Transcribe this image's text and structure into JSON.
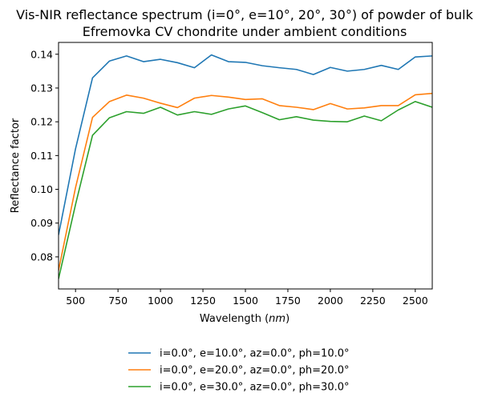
{
  "chart_data": {
    "type": "line",
    "title_lines": [
      "Vis-NIR reflectance spectrum (i=0°, e=10°, 20°, 30°) of powder of bulk",
      "Efremovka CV chondrite under ambient conditions"
    ],
    "xlabel_prefix": "Wavelength (",
    "xlabel_unit": "nm",
    "xlabel_suffix": ")",
    "ylabel": "Reflectance factor",
    "xlim": [
      400,
      2600
    ],
    "ylim": [
      0.0705,
      0.1435
    ],
    "xticks": [
      500,
      750,
      1000,
      1250,
      1500,
      1750,
      2000,
      2250,
      2500
    ],
    "yticks": [
      0.08,
      0.09,
      0.1,
      0.11,
      0.12,
      0.13,
      0.14
    ],
    "ytick_labels": [
      "0.08",
      "0.09",
      "0.10",
      "0.11",
      "0.12",
      "0.13",
      "0.14"
    ],
    "grid": false,
    "legend_position": "below-plot",
    "x": [
      400,
      500,
      600,
      700,
      800,
      900,
      1000,
      1100,
      1200,
      1300,
      1400,
      1500,
      1600,
      1700,
      1800,
      1900,
      2000,
      2100,
      2200,
      2300,
      2400,
      2500,
      2600
    ],
    "series": [
      {
        "name": "i=0.0°, e=10.0°, az=0.0°, ph=10.0°",
        "color": "#1f77b4",
        "values": [
          0.0865,
          0.112,
          0.133,
          0.138,
          0.1395,
          0.1378,
          0.1385,
          0.1375,
          0.136,
          0.1398,
          0.1378,
          0.1376,
          0.1366,
          0.136,
          0.1355,
          0.134,
          0.1361,
          0.135,
          0.1355,
          0.1367,
          0.1355,
          0.1392,
          0.1395
        ]
      },
      {
        "name": "i=0.0°, e=20.0°, az=0.0°, ph=20.0°",
        "color": "#ff7f0e",
        "values": [
          0.076,
          0.1005,
          0.1213,
          0.126,
          0.1279,
          0.127,
          0.1255,
          0.1242,
          0.127,
          0.1278,
          0.1273,
          0.1266,
          0.1268,
          0.1248,
          0.1243,
          0.1236,
          0.1254,
          0.1238,
          0.1241,
          0.1248,
          0.1248,
          0.128,
          0.1284
        ]
      },
      {
        "name": "i=0.0°, e=30.0°, az=0.0°, ph=30.0°",
        "color": "#2ca02c",
        "values": [
          0.0735,
          0.0955,
          0.116,
          0.1212,
          0.123,
          0.1225,
          0.1243,
          0.122,
          0.123,
          0.1222,
          0.1238,
          0.1247,
          0.1227,
          0.1206,
          0.1215,
          0.1205,
          0.1201,
          0.12,
          0.1217,
          0.1203,
          0.1235,
          0.126,
          0.1243
        ]
      }
    ]
  }
}
